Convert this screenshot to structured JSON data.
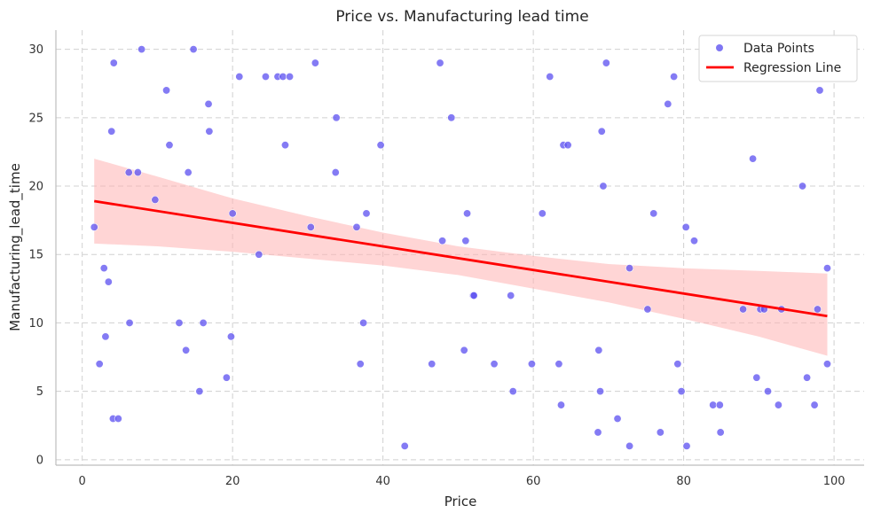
{
  "chart_data": {
    "type": "scatter",
    "title": "Price vs. Manufacturing lead time",
    "xlabel": "Price",
    "ylabel": "Manufacturing_lead_time",
    "xlim": [
      -3.5,
      104
    ],
    "ylim": [
      -0.4,
      31.4
    ],
    "x_ticks": [
      0,
      20,
      40,
      60,
      80,
      100
    ],
    "y_ticks": [
      0,
      5,
      10,
      15,
      20,
      25,
      30
    ],
    "grid": true,
    "legend_position": "top-right",
    "colors": {
      "points": "#5b4ff0",
      "line": "#ff0000",
      "band": "#ffb3b3"
    },
    "series": [
      {
        "name": "Data Points",
        "kind": "scatter",
        "points": [
          [
            1.6,
            17
          ],
          [
            2.3,
            7
          ],
          [
            2.9,
            14
          ],
          [
            3.1,
            9
          ],
          [
            3.5,
            13
          ],
          [
            3.9,
            24
          ],
          [
            4.1,
            3
          ],
          [
            4.2,
            29
          ],
          [
            4.8,
            3
          ],
          [
            6.2,
            21
          ],
          [
            6.3,
            10
          ],
          [
            7.4,
            21
          ],
          [
            7.9,
            30
          ],
          [
            9.7,
            19
          ],
          [
            11.2,
            27
          ],
          [
            11.6,
            23
          ],
          [
            12.9,
            10
          ],
          [
            13.8,
            8
          ],
          [
            14.1,
            21
          ],
          [
            14.8,
            30
          ],
          [
            15.6,
            5
          ],
          [
            16.1,
            10
          ],
          [
            16.8,
            26
          ],
          [
            16.9,
            24
          ],
          [
            19.2,
            6
          ],
          [
            19.8,
            9
          ],
          [
            20.0,
            18
          ],
          [
            20.9,
            28
          ],
          [
            23.5,
            15
          ],
          [
            24.4,
            28
          ],
          [
            26.0,
            28
          ],
          [
            26.7,
            28
          ],
          [
            27.0,
            23
          ],
          [
            27.6,
            28
          ],
          [
            30.4,
            17
          ],
          [
            31.0,
            29
          ],
          [
            33.7,
            21
          ],
          [
            33.8,
            25
          ],
          [
            36.5,
            17
          ],
          [
            37.0,
            7
          ],
          [
            37.4,
            10
          ],
          [
            37.8,
            18
          ],
          [
            39.7,
            23
          ],
          [
            42.9,
            1
          ],
          [
            46.5,
            7
          ],
          [
            47.6,
            29
          ],
          [
            47.9,
            16
          ],
          [
            49.1,
            25
          ],
          [
            50.8,
            8
          ],
          [
            51.0,
            16
          ],
          [
            51.2,
            18
          ],
          [
            52.0,
            12
          ],
          [
            52.1,
            12
          ],
          [
            54.8,
            7
          ],
          [
            57.0,
            12
          ],
          [
            57.3,
            5
          ],
          [
            59.8,
            7
          ],
          [
            61.2,
            18
          ],
          [
            62.2,
            28
          ],
          [
            63.4,
            7
          ],
          [
            63.7,
            4
          ],
          [
            64.0,
            23
          ],
          [
            64.6,
            23
          ],
          [
            68.6,
            2
          ],
          [
            68.7,
            8
          ],
          [
            68.9,
            5
          ],
          [
            69.1,
            24
          ],
          [
            69.3,
            20
          ],
          [
            69.7,
            29
          ],
          [
            71.2,
            3
          ],
          [
            72.8,
            1
          ],
          [
            72.8,
            14
          ],
          [
            75.2,
            11
          ],
          [
            76.0,
            18
          ],
          [
            76.9,
            2
          ],
          [
            77.9,
            26
          ],
          [
            78.7,
            28
          ],
          [
            79.2,
            7
          ],
          [
            79.7,
            5
          ],
          [
            80.3,
            17
          ],
          [
            80.4,
            1
          ],
          [
            81.4,
            16
          ],
          [
            83.9,
            4
          ],
          [
            84.8,
            4
          ],
          [
            84.9,
            2
          ],
          [
            87.9,
            11
          ],
          [
            89.2,
            22
          ],
          [
            89.7,
            6
          ],
          [
            90.2,
            11
          ],
          [
            90.7,
            11
          ],
          [
            91.2,
            5
          ],
          [
            92.6,
            4
          ],
          [
            93.0,
            11
          ],
          [
            95.8,
            20
          ],
          [
            96.4,
            6
          ],
          [
            97.4,
            4
          ],
          [
            97.8,
            11
          ],
          [
            98.1,
            27
          ],
          [
            99.1,
            14
          ],
          [
            99.1,
            7
          ]
        ]
      },
      {
        "name": "Regression Line",
        "kind": "line",
        "x": [
          1.6,
          99.1
        ],
        "y": [
          18.9,
          10.5
        ],
        "ci_lower": [
          [
            1.6,
            15.8
          ],
          [
            10,
            15.6
          ],
          [
            20,
            15.2
          ],
          [
            30,
            14.7
          ],
          [
            40,
            14.2
          ],
          [
            50,
            13.5
          ],
          [
            60,
            12.5
          ],
          [
            70,
            11.5
          ],
          [
            80,
            10.3
          ],
          [
            90,
            9.0
          ],
          [
            99.1,
            7.6
          ]
        ],
        "ci_upper": [
          [
            1.6,
            22.0
          ],
          [
            10,
            20.7
          ],
          [
            20,
            19.1
          ],
          [
            30,
            17.8
          ],
          [
            40,
            16.6
          ],
          [
            50,
            15.6
          ],
          [
            60,
            14.9
          ],
          [
            70,
            14.3
          ],
          [
            80,
            14.0
          ],
          [
            90,
            13.8
          ],
          [
            99.1,
            13.6
          ]
        ]
      }
    ]
  }
}
